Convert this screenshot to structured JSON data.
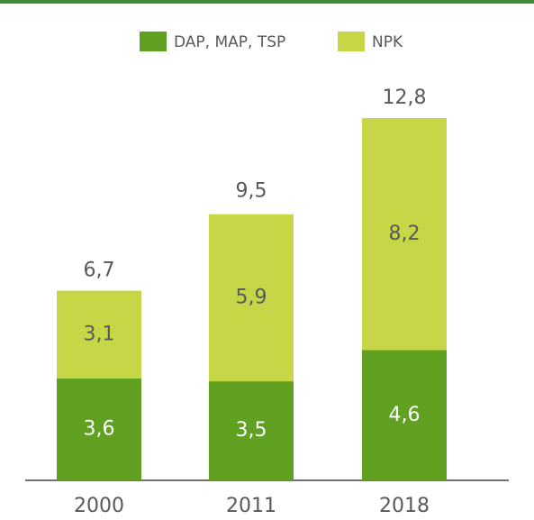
{
  "chart_data": {
    "type": "stacked_bar",
    "categories": [
      "2000",
      "2011",
      "2018"
    ],
    "series": [
      {
        "name": "DAP, MAP, TSP",
        "color": "#60a122",
        "values": [
          3.6,
          3.5,
          4.6
        ],
        "value_labels": [
          "3,6",
          "3,5",
          "4,6"
        ]
      },
      {
        "name": "NPK",
        "color": "#c6d646",
        "values": [
          3.1,
          5.9,
          8.2
        ],
        "value_labels": [
          "3,1",
          "5,9",
          "8,2"
        ]
      }
    ],
    "totals": [
      6.7,
      9.5,
      12.8
    ],
    "total_labels": [
      "6,7",
      "9,5",
      "12,8"
    ]
  }
}
